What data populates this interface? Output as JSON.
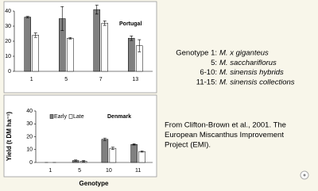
{
  "chart_data": [
    {
      "type": "bar",
      "title": "Portugal",
      "categories": [
        "1",
        "5",
        "7",
        "13"
      ],
      "series": [
        {
          "color": "#808080",
          "values": [
            36,
            35,
            41,
            22
          ],
          "errors": [
            0.5,
            8,
            3,
            1.5
          ]
        },
        {
          "color": "#ffffff",
          "values": [
            24,
            22,
            32,
            17
          ],
          "errors": [
            1.5,
            0.5,
            1.5,
            4
          ]
        }
      ],
      "ylim": [
        0,
        40
      ],
      "yticks": [
        0,
        10,
        20,
        30,
        40
      ]
    },
    {
      "type": "bar",
      "title": "Denmark",
      "categories": [
        "1",
        "5",
        "10",
        "11"
      ],
      "series": [
        {
          "name": "Early",
          "color": "#808080",
          "values": [
            0,
            1.5,
            18,
            14
          ],
          "errors": [
            0,
            0.5,
            1,
            0.5
          ]
        },
        {
          "name": "Late",
          "color": "#ffffff",
          "values": [
            0,
            1,
            11,
            8.5
          ],
          "errors": [
            0,
            0.5,
            1,
            0.5
          ]
        }
      ],
      "ylim": [
        0,
        40
      ],
      "yticks": [
        0,
        10,
        20,
        30,
        40
      ],
      "x_label": "Genotype",
      "y_label": "Yield (t DM ha⁻¹)"
    }
  ],
  "genotypes": [
    {
      "label": "Genotype 1:",
      "species": "M. x giganteus"
    },
    {
      "label": "5:",
      "species": "M. sacchariflorus"
    },
    {
      "label": "6-10:",
      "species": "M. sinensis hybrids"
    },
    {
      "label": "11-15:",
      "species": "M. sinensis collections"
    }
  ],
  "source": [
    "From Clifton-Brown et al., 2001. The",
    "European Miscanthus Improvement",
    "Project (EMI)."
  ]
}
